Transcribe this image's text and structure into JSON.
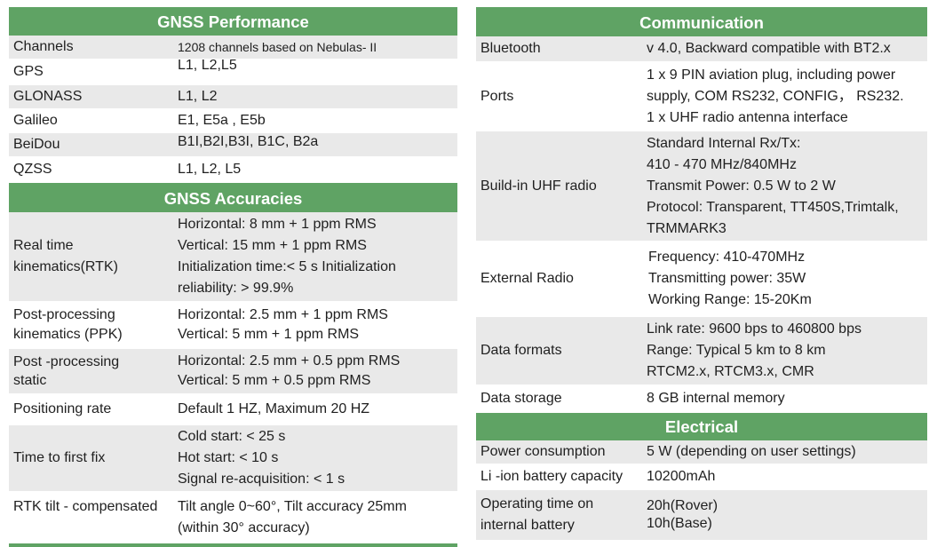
{
  "left": {
    "performance": {
      "title": "GNSS  Performance",
      "rows": [
        {
          "key": "Channels",
          "lines": [
            "1208 channels based on Nebulas- II"
          ]
        },
        {
          "key": "GPS",
          "lines": [
            "L1, L2,L5"
          ]
        },
        {
          "key": "GLONASS",
          "lines": [
            "L1, L2"
          ]
        },
        {
          "key": "Galileo",
          "lines": [
            "E1, E5a , E5b"
          ]
        },
        {
          "key": "BeiDou",
          "lines": [
            "B1I,B2I,B3I, B1C, B2a"
          ]
        },
        {
          "key": "QZSS",
          "lines": [
            "L1, L2, L5"
          ]
        }
      ]
    },
    "accuracies": {
      "title": "GNSS  Accuracies",
      "rows": [
        {
          "key": [
            "Real time",
            "kinematics(RTK)"
          ],
          "lines": [
            "Horizontal: 8 mm + 1 ppm RMS",
            "Vertical: 15 mm + 1 ppm RMS",
            "Initialization time:< 5 s Initialization",
            "reliability: > 99.9%"
          ]
        },
        {
          "key": [
            "Post-processing",
            "kinematics (PPK)"
          ],
          "lines": [
            "Horizontal: 2.5 mm + 1 ppm RMS",
            "Vertical: 5 mm + 1 ppm RMS"
          ]
        },
        {
          "key": [
            "Post -processing",
            "static"
          ],
          "lines": [
            "Horizontal: 2.5 mm + 0.5 ppm RMS",
            "Vertical: 5 mm + 0.5 ppm RMS"
          ]
        },
        {
          "key": [
            "Positioning rate"
          ],
          "lines": [
            "Default 1 HZ, Maximum 20 HZ"
          ]
        },
        {
          "key": [
            "Time to first fix"
          ],
          "lines": [
            "Cold start: < 25 s",
            "Hot start: < 10 s",
            "Signal re-acquisition: < 1 s"
          ]
        },
        {
          "key": [
            "RTK tilt - compensated"
          ],
          "lines": [
            "Tilt angle 0~60°, Tilt accuracy 25mm",
            "(within 30° accuracy)"
          ]
        }
      ]
    }
  },
  "right": {
    "communication": {
      "title": "Communication",
      "rows": [
        {
          "key": "Bluetooth",
          "lines": [
            "v 4.0, Backward compatible with BT2.x"
          ]
        },
        {
          "key": "Ports",
          "lines": [
            "1 x 9 PIN aviation plug, including power",
            "supply, COM RS232, CONFIG， RS232.",
            "1 x UHF radio antenna interface"
          ]
        },
        {
          "key": "Build-in UHF radio",
          "lines": [
            "Standard Internal Rx/Tx:",
            "410 - 470 MHz/840MHz",
            "Transmit Power: 0.5 W to 2 W",
            "Protocol: Transparent, TT450S,Trimtalk,",
            "TRMMARK3"
          ]
        },
        {
          "key": "External Radio",
          "lines": [
            "Frequency: 410-470MHz",
            "Transmitting power: 35W",
            "Working Range: 15-20Km"
          ]
        },
        {
          "key": "Data formats",
          "lines": [
            "Link rate: 9600 bps to 460800 bps",
            "Range: Typical 5 km to 8 km",
            "RTCM2.x, RTCM3.x, CMR"
          ]
        },
        {
          "key": "Data storage",
          "lines": [
            "8 GB internal memory"
          ]
        }
      ]
    },
    "electrical": {
      "title": "Electrical",
      "rows": [
        {
          "key": [
            "Power consumption"
          ],
          "lines": [
            "5 W (depending on user settings)"
          ]
        },
        {
          "key": [
            "Li -ion battery capacity"
          ],
          "lines": [
            "10200mAh"
          ]
        },
        {
          "key": [
            "Operating time on",
            "internal battery"
          ],
          "lines": [
            "20h(Rover)",
            "10h(Base)"
          ]
        }
      ]
    }
  }
}
